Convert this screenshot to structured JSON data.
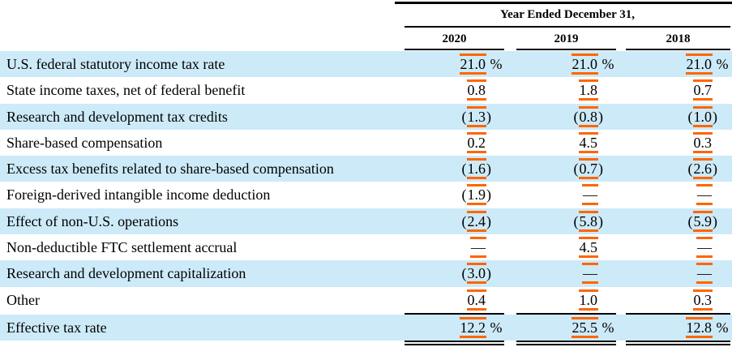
{
  "colors": {
    "row_highlight": "#cdeaf8",
    "xbrl_mark_orange": "#ff6600",
    "rule_black": "#000000",
    "text": "#000000"
  },
  "table": {
    "title": "Year Ended December 31,",
    "columns": [
      "2020",
      "2019",
      "2018"
    ],
    "rows": [
      {
        "label": "U.S. federal statutory income tax rate",
        "values": [
          {
            "pre": "",
            "num": "21.0",
            "suf": " %"
          },
          {
            "pre": "",
            "num": "21.0",
            "suf": " %"
          },
          {
            "pre": "",
            "num": "21.0",
            "suf": " %"
          }
        ]
      },
      {
        "label": "State income taxes, net of federal benefit",
        "values": [
          {
            "pre": "",
            "num": "0.8",
            "suf": ""
          },
          {
            "pre": "",
            "num": "1.8",
            "suf": ""
          },
          {
            "pre": "",
            "num": "0.7",
            "suf": ""
          }
        ]
      },
      {
        "label": "Research and development tax credits",
        "values": [
          {
            "pre": "(",
            "num": "1.3",
            "suf": ")"
          },
          {
            "pre": "(",
            "num": "0.8",
            "suf": ")"
          },
          {
            "pre": "(",
            "num": "1.0",
            "suf": ")"
          }
        ]
      },
      {
        "label": "Share-based compensation",
        "values": [
          {
            "pre": "",
            "num": "0.2",
            "suf": ""
          },
          {
            "pre": "",
            "num": "4.5",
            "suf": ""
          },
          {
            "pre": "",
            "num": "0.3",
            "suf": ""
          }
        ]
      },
      {
        "label": "Excess tax benefits related to share-based compensation",
        "values": [
          {
            "pre": "(",
            "num": "1.6",
            "suf": ")"
          },
          {
            "pre": "(",
            "num": "0.7",
            "suf": ")"
          },
          {
            "pre": "(",
            "num": "2.6",
            "suf": ")"
          }
        ]
      },
      {
        "label": "Foreign-derived intangible income deduction",
        "values": [
          {
            "pre": "(",
            "num": "1.9",
            "suf": ")"
          },
          {
            "pre": "",
            "num": "—",
            "suf": ""
          },
          {
            "pre": "",
            "num": "—",
            "suf": ""
          }
        ]
      },
      {
        "label": "Effect of non-U.S. operations",
        "values": [
          {
            "pre": "(",
            "num": "2.4",
            "suf": ")"
          },
          {
            "pre": "(",
            "num": "5.8",
            "suf": ")"
          },
          {
            "pre": "(",
            "num": "5.9",
            "suf": ")"
          }
        ]
      },
      {
        "label": "Non-deductible FTC settlement accrual",
        "values": [
          {
            "pre": "",
            "num": "—",
            "suf": ""
          },
          {
            "pre": "",
            "num": "4.5",
            "suf": ""
          },
          {
            "pre": "",
            "num": "—",
            "suf": ""
          }
        ]
      },
      {
        "label": "Research and development capitalization",
        "values": [
          {
            "pre": "(",
            "num": "3.0",
            "suf": ")"
          },
          {
            "pre": "",
            "num": "—",
            "suf": ""
          },
          {
            "pre": "",
            "num": "—",
            "suf": ""
          }
        ]
      },
      {
        "label": "Other",
        "values": [
          {
            "pre": "",
            "num": "0.4",
            "suf": ""
          },
          {
            "pre": "",
            "num": "1.0",
            "suf": ""
          },
          {
            "pre": "",
            "num": "0.3",
            "suf": ""
          }
        ]
      },
      {
        "label": "Effective tax rate",
        "values": [
          {
            "pre": "",
            "num": "12.2",
            "suf": " %"
          },
          {
            "pre": "",
            "num": "25.5",
            "suf": " %"
          },
          {
            "pre": "",
            "num": "12.8",
            "suf": " %"
          }
        ]
      }
    ]
  }
}
